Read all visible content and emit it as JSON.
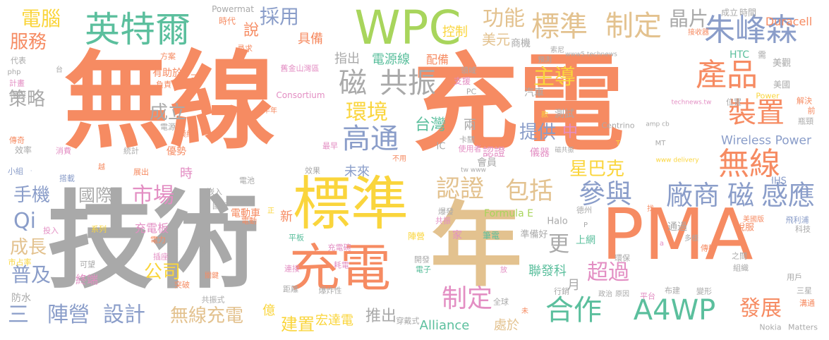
{
  "palette": {
    "orange": "#f68b62",
    "gray": "#a9a9a9",
    "gold": "#fad53c",
    "tan": "#e3c28f",
    "teal": "#5bbf9d",
    "green": "#a8d55c",
    "blue": "#8a9dc9",
    "pink": "#e38ec3"
  },
  "words": [
    {
      "text": "無線",
      "color": "orange"
    },
    {
      "text": "充電",
      "color": "orange"
    },
    {
      "text": "技術",
      "color": "gray"
    },
    {
      "text": "標準",
      "color": "gold"
    },
    {
      "text": "年",
      "color": "tan"
    },
    {
      "text": "PMA",
      "color": "orange"
    },
    {
      "text": "WPC",
      "color": "green"
    },
    {
      "text": "充電",
      "color": "orange"
    },
    {
      "text": "英特爾",
      "color": "teal"
    },
    {
      "text": "朱峰森",
      "color": "blue"
    },
    {
      "text": "標準",
      "color": "tan"
    },
    {
      "text": "制定",
      "color": "tan"
    },
    {
      "text": "功能",
      "color": "tan"
    },
    {
      "text": "產品",
      "color": "orange"
    },
    {
      "text": "裝置",
      "color": "orange"
    },
    {
      "text": "無線",
      "color": "orange"
    },
    {
      "text": "合作",
      "color": "teal"
    },
    {
      "text": "A4WP",
      "color": "teal"
    },
    {
      "text": "廠商",
      "color": "blue"
    },
    {
      "text": "磁",
      "color": "blue"
    },
    {
      "text": "感應",
      "color": "blue"
    },
    {
      "text": "參與",
      "color": "blue"
    },
    {
      "text": "包括",
      "color": "tan"
    },
    {
      "text": "認證",
      "color": "tan"
    },
    {
      "text": "高通",
      "color": "blue"
    },
    {
      "text": "磁",
      "color": "gray"
    },
    {
      "text": "共振",
      "color": "gray"
    },
    {
      "text": "環境",
      "color": "gold"
    },
    {
      "text": "電腦",
      "color": "gold"
    },
    {
      "text": "服務",
      "color": "orange"
    },
    {
      "text": "採用",
      "color": "blue"
    },
    {
      "text": "晶片",
      "color": "gray"
    },
    {
      "text": "策略",
      "color": "gray"
    },
    {
      "text": "成立",
      "color": "gray"
    },
    {
      "text": "主導",
      "color": "gold"
    },
    {
      "text": "市場",
      "color": "pink"
    },
    {
      "text": "國際",
      "color": "gray"
    },
    {
      "text": "手機",
      "color": "blue"
    },
    {
      "text": "Qi",
      "color": "blue"
    },
    {
      "text": "成長",
      "color": "tan"
    },
    {
      "text": "普及",
      "color": "blue"
    },
    {
      "text": "三",
      "color": "blue"
    },
    {
      "text": "陣營",
      "color": "blue"
    },
    {
      "text": "設計",
      "color": "blue"
    },
    {
      "text": "無線充電",
      "color": "tan"
    },
    {
      "text": "制定",
      "color": "pink"
    },
    {
      "text": "超過",
      "color": "pink"
    },
    {
      "text": "更",
      "color": "gray"
    },
    {
      "text": "發展",
      "color": "orange"
    },
    {
      "text": "公司",
      "color": "gold"
    },
    {
      "text": "提供",
      "color": "blue"
    },
    {
      "text": "星巴克",
      "color": "gold"
    },
    {
      "text": "台灣",
      "color": "teal"
    },
    {
      "text": "推出",
      "color": "gray"
    },
    {
      "text": "建置",
      "color": "gold"
    },
    {
      "text": "宏達電",
      "color": "gold"
    },
    {
      "text": "Alliance",
      "color": "teal"
    },
    {
      "text": "處於",
      "color": "tan"
    },
    {
      "text": "Wireless Power",
      "color": "blue"
    },
    {
      "text": "聯發科",
      "color": "teal"
    },
    {
      "text": "美元",
      "color": "tan"
    },
    {
      "text": "說",
      "color": "orange"
    },
    {
      "text": "具備",
      "color": "orange"
    },
    {
      "text": "控制",
      "color": "gold"
    },
    {
      "text": "電源線",
      "color": "teal"
    },
    {
      "text": "指出",
      "color": "gray"
    },
    {
      "text": "配備",
      "color": "orange"
    },
    {
      "text": "Duracell",
      "color": "orange"
    },
    {
      "text": "Powermat",
      "color": "gray"
    },
    {
      "text": "時代",
      "color": "orange"
    },
    {
      "text": "成立",
      "color": "gray"
    },
    {
      "text": "時間",
      "color": "gray"
    },
    {
      "text": "商機",
      "color": "gray"
    },
    {
      "text": "未來",
      "color": "blue"
    },
    {
      "text": "會員",
      "color": "gray"
    },
    {
      "text": "認證",
      "color": "pink"
    },
    {
      "text": "中",
      "color": "pink"
    },
    {
      "text": "月",
      "color": "gray"
    },
    {
      "text": "億",
      "color": "gold"
    },
    {
      "text": "兩",
      "color": "gray"
    },
    {
      "text": "時",
      "color": "pink"
    },
    {
      "text": "優勢",
      "color": "orange"
    },
    {
      "text": "充電板",
      "color": "pink"
    },
    {
      "text": "汽車",
      "color": "gray"
    },
    {
      "text": "測試",
      "color": "gray"
    },
    {
      "text": "IHS",
      "color": "blue"
    },
    {
      "text": "美國",
      "color": "gray"
    },
    {
      "text": "Formula E",
      "color": "green"
    },
    {
      "text": "Halo",
      "color": "gray"
    },
    {
      "text": "說服",
      "color": "orange"
    },
    {
      "text": "通過",
      "color": "gray"
    },
    {
      "text": "準備好",
      "color": "gray"
    },
    {
      "text": "上網",
      "color": "teal"
    },
    {
      "text": "新",
      "color": "orange"
    },
    {
      "text": "電動車",
      "color": "orange"
    },
    {
      "text": "家",
      "color": "pink"
    },
    {
      "text": "筆電",
      "color": "teal"
    },
    {
      "text": "陣營",
      "color": "gold"
    },
    {
      "text": "防水",
      "color": "gray"
    },
    {
      "text": "儀器",
      "color": "pink"
    },
    {
      "text": "手機",
      "color": "blue"
    },
    {
      "text": "效率",
      "color": "gray"
    },
    {
      "text": "統計",
      "color": "gray"
    },
    {
      "text": "IC",
      "color": "gray"
    },
    {
      "text": "卡關",
      "color": "gray"
    },
    {
      "text": "使用者",
      "color": "pink"
    },
    {
      "text": "不用",
      "color": "orange"
    },
    {
      "text": "有助於",
      "color": "orange"
    },
    {
      "text": "負責",
      "color": "orange"
    },
    {
      "text": "舊金山灣區",
      "color": "pink"
    },
    {
      "text": "Consortium",
      "color": "pink"
    },
    {
      "text": "下半年",
      "color": "orange"
    },
    {
      "text": "支援",
      "color": "pink"
    },
    {
      "text": "PC",
      "color": "gray"
    },
    {
      "text": "領域",
      "color": "gray"
    },
    {
      "text": "預測",
      "color": "gray"
    },
    {
      "text": "接收器",
      "color": "orange"
    },
    {
      "text": "索尼",
      "color": "gray"
    },
    {
      "text": "HTC",
      "color": "teal"
    },
    {
      "text": "需",
      "color": "gray"
    },
    {
      "text": "美觀",
      "color": "gray"
    },
    {
      "text": "Power",
      "color": "gold"
    },
    {
      "text": "位置",
      "color": "gray"
    },
    {
      "text": "解決",
      "color": "orange"
    },
    {
      "text": "前",
      "color": "orange"
    },
    {
      "text": "瓶頸",
      "color": "gray"
    },
    {
      "text": "Centrino",
      "color": "gray"
    },
    {
      "text": "技術",
      "color": "blue"
    },
    {
      "text": "代表",
      "color": "gray"
    },
    {
      "text": "計畫",
      "color": "pink"
    },
    {
      "text": "階段",
      "color": "gray"
    },
    {
      "text": "傳奇",
      "color": "orange"
    },
    {
      "text": "小組",
      "color": "blue"
    },
    {
      "text": "消費",
      "color": "pink"
    },
    {
      "text": "搭載",
      "color": "blue"
    },
    {
      "text": "展出",
      "color": "orange"
    },
    {
      "text": "效果",
      "color": "gray"
    },
    {
      "text": "電池",
      "color": "gray"
    },
    {
      "text": "嵌入",
      "color": "gray"
    },
    {
      "text": "國家",
      "color": "gray"
    },
    {
      "text": "爆發",
      "color": "gray"
    },
    {
      "text": "共振",
      "color": "pink"
    },
    {
      "text": "德州",
      "color": "gray"
    },
    {
      "text": "美國版",
      "color": "orange"
    },
    {
      "text": "飛利浦",
      "color": "blue"
    },
    {
      "text": "科技",
      "color": "gray"
    },
    {
      "text": "投入",
      "color": "pink"
    },
    {
      "text": "系列",
      "color": "gold"
    },
    {
      "text": "電力",
      "color": "orange"
    },
    {
      "text": "插座",
      "color": "pink"
    },
    {
      "text": "電動",
      "color": "orange"
    },
    {
      "text": "平板",
      "color": "teal"
    },
    {
      "text": "充電碗",
      "color": "pink"
    },
    {
      "text": "耗電",
      "color": "pink"
    },
    {
      "text": "開發",
      "color": "gray"
    },
    {
      "text": "電子",
      "color": "teal"
    },
    {
      "text": "環保",
      "color": "gray"
    },
    {
      "text": "傳輸",
      "color": "orange"
    },
    {
      "text": "之間",
      "color": "gray"
    },
    {
      "text": "組織",
      "color": "gray"
    },
    {
      "text": "市占率",
      "color": "gold"
    },
    {
      "text": "可望",
      "color": "gray"
    },
    {
      "text": "終端",
      "color": "pink"
    },
    {
      "text": "連接",
      "color": "pink"
    },
    {
      "text": "距離",
      "color": "gray"
    },
    {
      "text": "爆炸性",
      "color": "gray"
    },
    {
      "text": "突破",
      "color": "orange"
    },
    {
      "text": "共振式",
      "color": "gray"
    },
    {
      "text": "穿戴式",
      "color": "gray"
    },
    {
      "text": "全球",
      "color": "gray"
    },
    {
      "text": "行銷",
      "color": "gray"
    },
    {
      "text": "政治",
      "color": "gray"
    },
    {
      "text": "原因",
      "color": "gray"
    },
    {
      "text": "平台",
      "color": "pink"
    },
    {
      "text": "布建",
      "color": "gray"
    },
    {
      "text": "變形",
      "color": "gray"
    },
    {
      "text": "用戶",
      "color": "gray"
    },
    {
      "text": "三星",
      "color": "gray"
    },
    {
      "text": "溝通",
      "color": "orange"
    },
    {
      "text": "Nokia",
      "color": "gray"
    },
    {
      "text": "Matters",
      "color": "gray"
    },
    {
      "text": "方案",
      "color": "orange"
    },
    {
      "text": "尋求",
      "color": "orange"
    },
    {
      "text": "php",
      "color": "gray"
    },
    {
      "text": "電源",
      "color": "gray"
    },
    {
      "text": "模組",
      "color": "orange"
    },
    {
      "text": "最早",
      "color": "pink"
    },
    {
      "text": "www5.technews",
      "color": "gray"
    },
    {
      "text": "technews.tw",
      "color": "pink"
    },
    {
      "text": "amp cb",
      "color": "gray"
    },
    {
      "text": "www delivery",
      "color": "gold"
    },
    {
      "text": "tw www",
      "color": "gray"
    },
    {
      "text": "MT",
      "color": "gray"
    },
    {
      "text": "T",
      "color": "gold"
    },
    {
      "text": "磁共振",
      "color": "gray"
    },
    {
      "text": "瓦",
      "color": "gray"
    },
    {
      "text": "達",
      "color": "gray"
    },
    {
      "text": "款",
      "color": "gold"
    },
    {
      "text": "台",
      "color": "gray"
    },
    {
      "text": "放",
      "color": "pink"
    },
    {
      "text": "未",
      "color": "orange"
    },
    {
      "text": "正",
      "color": "gold"
    },
    {
      "text": "找",
      "color": "orange"
    },
    {
      "text": "a",
      "color": "pink"
    },
    {
      "text": "P",
      "color": "gray"
    },
    {
      "text": "關鍵",
      "color": "orange"
    },
    {
      "text": "多樣",
      "color": "gray"
    },
    {
      "text": "越",
      "color": "orange"
    },
    {
      "text": "三",
      "color": "orange"
    }
  ]
}
